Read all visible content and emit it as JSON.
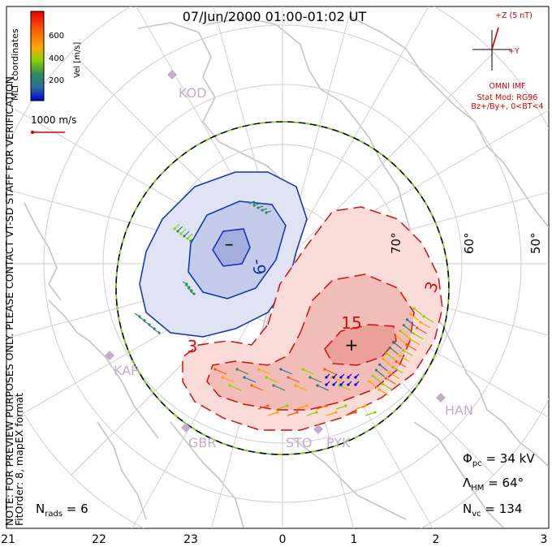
{
  "title": "07/Jun/2000 01:00-01:02 UT",
  "side_note": "NOTE: FOR PREVIEW PURPOSES ONLY. PLEASE CONTACT VT-SD STAFF FOR VERIFICATION.",
  "fit_note": "FitOrder: 8, mapEX format",
  "coord_label": "MLT coordinates",
  "colorbar": {
    "label": "Vel [m/s]",
    "ticks": [
      "600",
      "400",
      "200"
    ],
    "colors": [
      "#e60000",
      "#ff5a00",
      "#ffa500",
      "#8cd000",
      "#2e8b57",
      "#2a6fa0",
      "#0000d0"
    ]
  },
  "scale_vector": {
    "label": "1000 m/s",
    "color": "#d00000"
  },
  "imf": {
    "z_label": "+Z (5 nT)",
    "y_label": "+Y",
    "source": "OMNI IMF",
    "model": "Stat Mod: RG96",
    "condition": "Bz+/By+, 0<BT<4",
    "color": "#d00000"
  },
  "stations": [
    "KOD",
    "KAP",
    "GBR",
    "STO",
    "PYK",
    "HAN"
  ],
  "latitude_labels": [
    "70°",
    "60°",
    "50°"
  ],
  "contours": {
    "negative_labels": [
      "-9"
    ],
    "positive_labels": [
      "3",
      "15",
      "3"
    ],
    "negative_color": "#1030b0",
    "positive_color": "#d01010",
    "minimum_marker": "–",
    "maximum_marker": "+"
  },
  "stats": {
    "phi_sym": "Φ",
    "phi_sub": "pc",
    "phi_val": " = 34 kV",
    "lam_sym": "Λ",
    "lam_sub": "HM",
    "lam_val": " = 64°",
    "nvc_sym": "N",
    "nvc_sub": "vc",
    "nvc_val": " = 134",
    "nrads_sym": "N",
    "nrads_sub": "rads",
    "nrads_val": " = 6"
  },
  "mlt_axis": [
    "21",
    "22",
    "23",
    "0",
    "1",
    "2",
    "3"
  ]
}
